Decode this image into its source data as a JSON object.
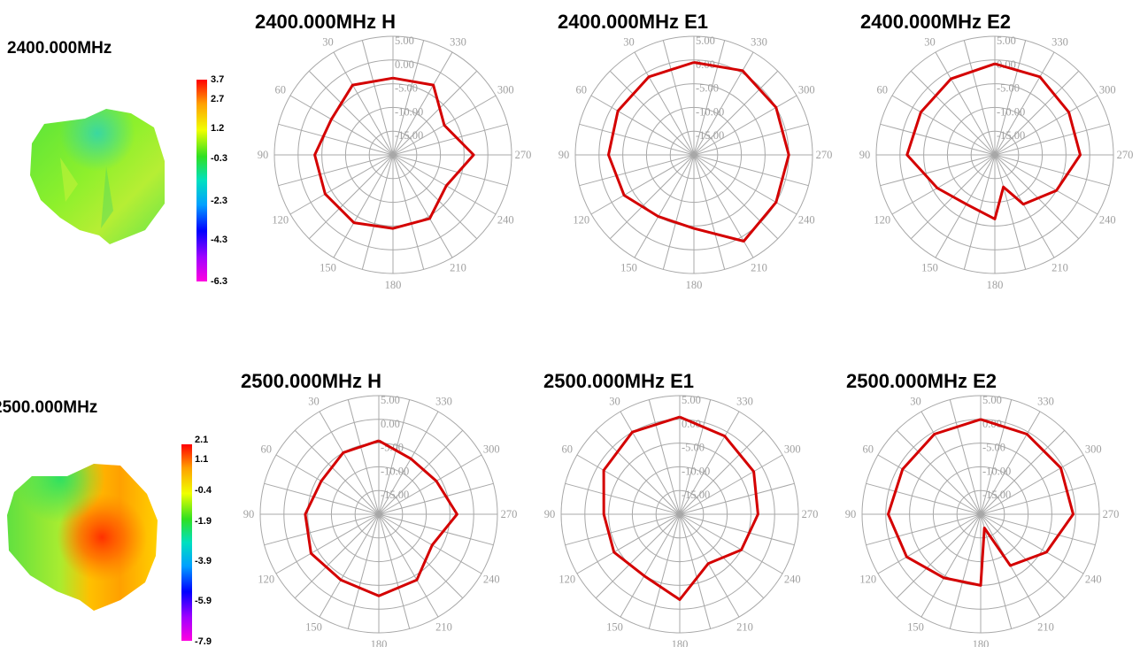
{
  "rows": [
    {
      "frequency_label": "2400.000MHz",
      "scale_ticks": [
        "3.7",
        "2.7",
        "1.2",
        "-0.3",
        "-2.3",
        "-4.3",
        "-6.3"
      ]
    },
    {
      "frequency_label": "2500.000MHz",
      "scale_ticks": [
        "2.1",
        "1.1",
        "-0.4",
        "-1.9",
        "-3.9",
        "-5.9",
        "-7.9"
      ]
    }
  ],
  "colors": {
    "trace": "#d40000",
    "grid": "#a8a8a8",
    "ring_label": "#a0a0a0"
  },
  "chart_data": [
    {
      "type": "polar",
      "title": "2400.000MHz  H",
      "radial_labels": [
        "5.00",
        "0.00",
        "-5.00",
        "-10.00",
        "-15.00"
      ],
      "r_range": [
        -20,
        5
      ],
      "angle_labels": [
        "30",
        "60",
        "90",
        "120",
        "150",
        "180",
        "210",
        "240",
        "270",
        "300",
        "330"
      ],
      "series": [
        {
          "angles": [
            0,
            30,
            60,
            90,
            120,
            150,
            180,
            210,
            240,
            270,
            300,
            330
          ],
          "values": [
            -3.8,
            -3.0,
            -5.0,
            -3.5,
            -3.5,
            -3.5,
            -4.5,
            -4.5,
            -7.0,
            -3.0,
            -7.5,
            -3.0
          ]
        }
      ]
    },
    {
      "type": "polar",
      "title": "2400.000MHz  E1",
      "radial_labels": [
        "5.00",
        "0.00",
        "-5.00",
        "-10.00",
        "-15.00"
      ],
      "r_range": [
        -20,
        5
      ],
      "angle_labels": [
        "30",
        "60",
        "90",
        "120",
        "150",
        "180",
        "210",
        "240",
        "270",
        "300",
        "330"
      ],
      "series": [
        {
          "angles": [
            0,
            30,
            60,
            90,
            120,
            150,
            180,
            210,
            240,
            270,
            300,
            330
          ],
          "values": [
            -0.5,
            -1.0,
            -1.5,
            -2.0,
            -3.0,
            -5.0,
            -4.5,
            1.0,
            0.0,
            0.0,
            0.0,
            0.5
          ]
        }
      ]
    },
    {
      "type": "polar",
      "title": "2400.000MHz  E2",
      "radial_labels": [
        "5.00",
        "0.00",
        "-5.00",
        "-10.00",
        "-15.00"
      ],
      "r_range": [
        -20,
        5
      ],
      "angle_labels": [
        "30",
        "60",
        "90",
        "120",
        "150",
        "180",
        "210",
        "240",
        "270",
        "300",
        "330"
      ],
      "series": [
        {
          "angles": [
            0,
            30,
            60,
            90,
            120,
            150,
            180,
            195,
            210,
            240,
            270,
            300,
            330
          ],
          "values": [
            -0.8,
            -1.5,
            -2.0,
            -1.5,
            -6.0,
            -8.0,
            -6.5,
            -13.0,
            -8.0,
            -5.0,
            -2.0,
            -2.0,
            -1.0
          ]
        }
      ]
    },
    {
      "type": "polar",
      "title": "2500.000MHz  H",
      "radial_labels": [
        "5.00",
        "0.00",
        "-5.00",
        "-10.00",
        "-15.00"
      ],
      "r_range": [
        -20,
        5
      ],
      "angle_labels": [
        "30",
        "60",
        "90",
        "120",
        "150",
        "180",
        "210",
        "240",
        "270",
        "300",
        "330"
      ],
      "series": [
        {
          "angles": [
            0,
            30,
            60,
            90,
            120,
            150,
            180,
            210,
            240,
            270,
            300,
            330
          ],
          "values": [
            -4.5,
            -5.0,
            -6.0,
            -4.5,
            -3.5,
            -4.0,
            -2.8,
            -4.0,
            -7.0,
            -3.5,
            -6.0,
            -6.5
          ]
        }
      ]
    },
    {
      "type": "polar",
      "title": "2500.000MHz  E1",
      "radial_labels": [
        "5.00",
        "0.00",
        "-5.00",
        "-10.00",
        "-15.00"
      ],
      "r_range": [
        -20,
        5
      ],
      "angle_labels": [
        "30",
        "60",
        "90",
        "120",
        "150",
        "180",
        "210",
        "240",
        "270",
        "300",
        "330"
      ],
      "series": [
        {
          "angles": [
            0,
            30,
            60,
            90,
            120,
            150,
            180,
            210,
            240,
            270,
            300,
            330
          ],
          "values": [
            0.5,
            0.0,
            -1.5,
            -4.0,
            -4.0,
            -5.0,
            -2.0,
            -8.0,
            -5.0,
            -3.5,
            -2.0,
            -1.0
          ]
        }
      ]
    },
    {
      "type": "polar",
      "title": "2500.000MHz  E2",
      "radial_labels": [
        "5.00",
        "0.00",
        "-5.00",
        "-10.00",
        "-15.00"
      ],
      "r_range": [
        -20,
        5
      ],
      "angle_labels": [
        "30",
        "60",
        "90",
        "120",
        "150",
        "180",
        "210",
        "240",
        "270",
        "300",
        "330"
      ],
      "series": [
        {
          "angles": [
            0,
            30,
            60,
            90,
            120,
            150,
            180,
            195,
            210,
            240,
            270,
            300,
            330
          ],
          "values": [
            0.0,
            -0.5,
            -1.0,
            -0.5,
            -2.0,
            -4.5,
            -5.0,
            -17.0,
            -7.5,
            -4.0,
            -0.5,
            -0.5,
            -0.5
          ]
        }
      ]
    }
  ]
}
